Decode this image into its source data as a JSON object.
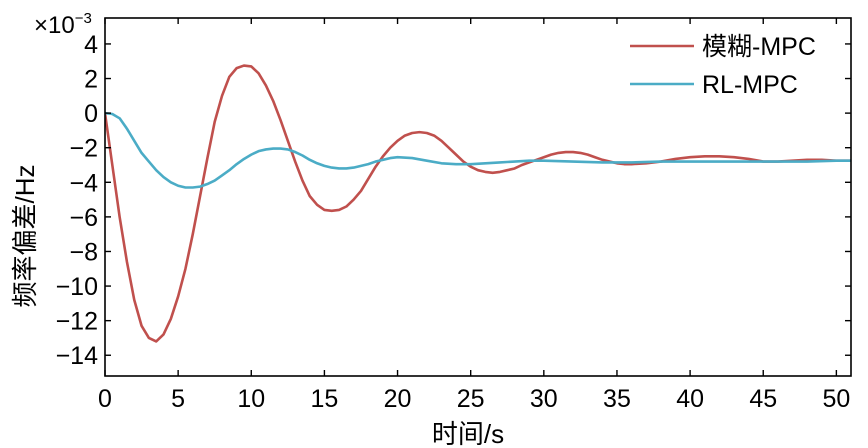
{
  "chart_data": {
    "type": "line",
    "title": "",
    "xlabel": "时间/s",
    "ylabel": "频率偏差/Hz",
    "y_multiplier_label": "×10",
    "y_multiplier_exponent": "−3",
    "xlim": [
      0,
      51
    ],
    "ylim": [
      -15.2,
      5.5
    ],
    "xticks": [
      0,
      5,
      10,
      15,
      20,
      25,
      30,
      35,
      40,
      45,
      50
    ],
    "xtick_labels": [
      "0",
      "5",
      "10",
      "15",
      "20",
      "25",
      "30",
      "35",
      "40",
      "45",
      "50"
    ],
    "yticks": [
      4,
      2,
      0,
      -2,
      -4,
      -6,
      -8,
      -10,
      -12,
      -14
    ],
    "ytick_labels": [
      "4",
      "2",
      "0",
      "−2",
      "−4",
      "−6",
      "−8",
      "−10",
      "−12",
      "−14"
    ],
    "grid": false,
    "legend_position": "top-right",
    "series": [
      {
        "name": "模糊-MPC",
        "color": "#c0504d",
        "points": [
          [
            0,
            0
          ],
          [
            0.5,
            -3
          ],
          [
            1,
            -6
          ],
          [
            1.5,
            -8.6
          ],
          [
            2,
            -10.8
          ],
          [
            2.5,
            -12.3
          ],
          [
            3,
            -13.0
          ],
          [
            3.5,
            -13.2
          ],
          [
            4,
            -12.8
          ],
          [
            4.5,
            -11.9
          ],
          [
            5,
            -10.6
          ],
          [
            5.5,
            -9.0
          ],
          [
            6,
            -7.0
          ],
          [
            6.5,
            -4.8
          ],
          [
            7,
            -2.6
          ],
          [
            7.5,
            -0.5
          ],
          [
            8,
            1.0
          ],
          [
            8.5,
            2.1
          ],
          [
            9,
            2.6
          ],
          [
            9.5,
            2.75
          ],
          [
            10,
            2.7
          ],
          [
            10.5,
            2.3
          ],
          [
            11,
            1.6
          ],
          [
            11.5,
            0.7
          ],
          [
            12,
            -0.4
          ],
          [
            12.5,
            -1.6
          ],
          [
            13,
            -2.8
          ],
          [
            13.5,
            -3.9
          ],
          [
            14,
            -4.8
          ],
          [
            14.5,
            -5.3
          ],
          [
            15,
            -5.6
          ],
          [
            15.5,
            -5.65
          ],
          [
            16,
            -5.6
          ],
          [
            16.5,
            -5.4
          ],
          [
            17,
            -5.0
          ],
          [
            17.5,
            -4.5
          ],
          [
            18,
            -3.8
          ],
          [
            18.5,
            -3.1
          ],
          [
            19,
            -2.5
          ],
          [
            19.5,
            -2.0
          ],
          [
            20,
            -1.6
          ],
          [
            20.5,
            -1.3
          ],
          [
            21,
            -1.15
          ],
          [
            21.5,
            -1.1
          ],
          [
            22,
            -1.15
          ],
          [
            22.5,
            -1.3
          ],
          [
            23,
            -1.6
          ],
          [
            23.5,
            -2.0
          ],
          [
            24,
            -2.4
          ],
          [
            24.5,
            -2.8
          ],
          [
            25,
            -3.1
          ],
          [
            25.5,
            -3.3
          ],
          [
            26,
            -3.4
          ],
          [
            26.5,
            -3.45
          ],
          [
            27,
            -3.4
          ],
          [
            27.5,
            -3.3
          ],
          [
            28,
            -3.2
          ],
          [
            28.5,
            -3.0
          ],
          [
            29,
            -2.85
          ],
          [
            29.5,
            -2.7
          ],
          [
            30,
            -2.55
          ],
          [
            30.5,
            -2.4
          ],
          [
            31,
            -2.3
          ],
          [
            31.5,
            -2.25
          ],
          [
            32,
            -2.25
          ],
          [
            32.5,
            -2.3
          ],
          [
            33,
            -2.4
          ],
          [
            33.5,
            -2.55
          ],
          [
            34,
            -2.7
          ],
          [
            34.5,
            -2.8
          ],
          [
            35,
            -2.9
          ],
          [
            35.5,
            -2.95
          ],
          [
            36,
            -2.95
          ],
          [
            37,
            -2.9
          ],
          [
            38,
            -2.8
          ],
          [
            39,
            -2.65
          ],
          [
            40,
            -2.55
          ],
          [
            41,
            -2.5
          ],
          [
            42,
            -2.5
          ],
          [
            43,
            -2.55
          ],
          [
            44,
            -2.65
          ],
          [
            45,
            -2.8
          ],
          [
            46,
            -2.8
          ],
          [
            47,
            -2.75
          ],
          [
            48,
            -2.7
          ],
          [
            49,
            -2.7
          ],
          [
            50,
            -2.75
          ],
          [
            51,
            -2.75
          ]
        ]
      },
      {
        "name": "RL-MPC",
        "color": "#4bacc6",
        "points": [
          [
            0,
            0
          ],
          [
            0.5,
            -0.05
          ],
          [
            1,
            -0.3
          ],
          [
            1.5,
            -0.9
          ],
          [
            2,
            -1.6
          ],
          [
            2.5,
            -2.3
          ],
          [
            3,
            -2.8
          ],
          [
            3.5,
            -3.3
          ],
          [
            4,
            -3.7
          ],
          [
            4.5,
            -4.0
          ],
          [
            5,
            -4.2
          ],
          [
            5.5,
            -4.3
          ],
          [
            6,
            -4.3
          ],
          [
            6.5,
            -4.25
          ],
          [
            7,
            -4.1
          ],
          [
            7.5,
            -3.9
          ],
          [
            8,
            -3.6
          ],
          [
            8.5,
            -3.3
          ],
          [
            9,
            -2.95
          ],
          [
            9.5,
            -2.65
          ],
          [
            10,
            -2.4
          ],
          [
            10.5,
            -2.2
          ],
          [
            11,
            -2.1
          ],
          [
            11.5,
            -2.05
          ],
          [
            12,
            -2.05
          ],
          [
            12.5,
            -2.1
          ],
          [
            13,
            -2.25
          ],
          [
            13.5,
            -2.45
          ],
          [
            14,
            -2.7
          ],
          [
            14.5,
            -2.9
          ],
          [
            15,
            -3.05
          ],
          [
            15.5,
            -3.15
          ],
          [
            16,
            -3.2
          ],
          [
            16.5,
            -3.2
          ],
          [
            17,
            -3.15
          ],
          [
            17.5,
            -3.05
          ],
          [
            18,
            -2.95
          ],
          [
            18.5,
            -2.8
          ],
          [
            19,
            -2.7
          ],
          [
            19.5,
            -2.6
          ],
          [
            20,
            -2.55
          ],
          [
            21,
            -2.6
          ],
          [
            22,
            -2.75
          ],
          [
            23,
            -2.9
          ],
          [
            24,
            -2.95
          ],
          [
            25,
            -2.95
          ],
          [
            26,
            -2.9
          ],
          [
            27,
            -2.85
          ],
          [
            28,
            -2.8
          ],
          [
            29,
            -2.75
          ],
          [
            30,
            -2.75
          ],
          [
            32,
            -2.8
          ],
          [
            34,
            -2.85
          ],
          [
            36,
            -2.85
          ],
          [
            38,
            -2.8
          ],
          [
            40,
            -2.8
          ],
          [
            42,
            -2.8
          ],
          [
            44,
            -2.8
          ],
          [
            46,
            -2.8
          ],
          [
            48,
            -2.8
          ],
          [
            50,
            -2.75
          ],
          [
            51,
            -2.75
          ]
        ]
      }
    ]
  }
}
